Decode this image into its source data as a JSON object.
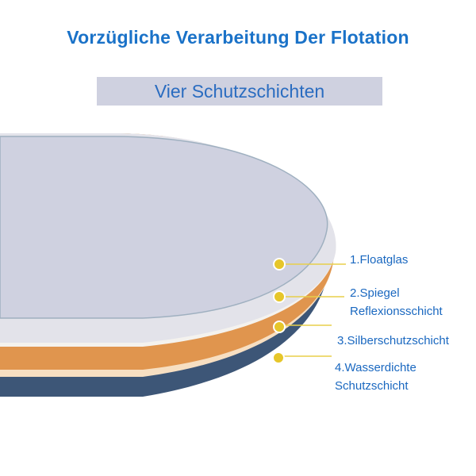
{
  "header": {
    "title": "Vorzügliche Verarbeitung Der Flotation",
    "subtitle": "Vier Schutzschichten"
  },
  "layers": [
    {
      "label_lines": [
        "1.Floatglas"
      ],
      "color": "#cfd1e0"
    },
    {
      "label_lines": [
        "2.Spiegel",
        "Reflexionsschicht"
      ],
      "color": "#e3e3ea"
    },
    {
      "label_lines": [
        "3.Silberschutzschicht"
      ],
      "color": "#e0954e"
    },
    {
      "label_lines": [
        "4.Wasserdichte",
        "Schutzschicht"
      ],
      "color": "#3d5677"
    }
  ],
  "colors": {
    "title": "#1a72c8",
    "subtitle_text": "#2a6cc0",
    "subtitle_bg": "#cfd1e0",
    "label_text": "#1a68c0",
    "marker": "#e6c62a",
    "leader_line": "#e8cf4a"
  }
}
